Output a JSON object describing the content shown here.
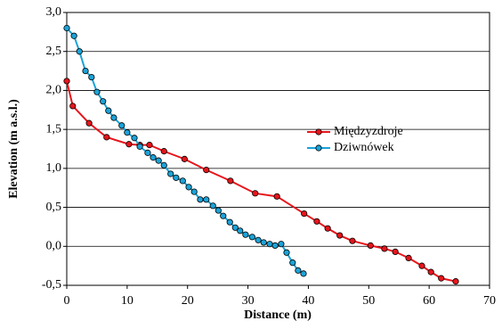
{
  "chart_data": {
    "type": "line",
    "x_label": "Distance (m)",
    "y_label": "Elevation (m a.s.l.)",
    "xlim": [
      0,
      70
    ],
    "xticks": [
      0,
      10,
      20,
      30,
      40,
      50,
      60,
      70
    ],
    "ylim": [
      -0.5,
      3.0
    ],
    "yticks": [
      {
        "value": -0.5,
        "label": "-0,5"
      },
      {
        "value": 0,
        "label": "0,0"
      },
      {
        "value": 0.5,
        "label": "0,5"
      },
      {
        "value": 1.0,
        "label": "1,0"
      },
      {
        "value": 1.5,
        "label": "1,5"
      },
      {
        "value": 2.0,
        "label": "2,0"
      },
      {
        "value": 2.5,
        "label": "2,5"
      },
      {
        "value": 3.0,
        "label": "3,0"
      }
    ],
    "grid": true,
    "legend": "right",
    "series": [
      {
        "name": "Międzyzdroje",
        "color": "#e8141b",
        "x": [
          0,
          1.0,
          3.7,
          6.6,
          10.3,
          12.1,
          13.7,
          16.1,
          19.5,
          23.1,
          27.1,
          31.2,
          34.8,
          39.3,
          41.4,
          43.2,
          45.2,
          47.3,
          50.3,
          52.6,
          54.4,
          56.6,
          58.8,
          60.3,
          62.0,
          64.4
        ],
        "values": [
          2.12,
          1.8,
          1.58,
          1.4,
          1.31,
          1.3,
          1.3,
          1.22,
          1.12,
          0.98,
          0.84,
          0.68,
          0.64,
          0.42,
          0.32,
          0.23,
          0.14,
          0.07,
          0.01,
          -0.03,
          -0.07,
          -0.15,
          -0.25,
          -0.33,
          -0.41,
          -0.45
        ]
      },
      {
        "name": "Dziwnówek",
        "color": "#1ba3d8",
        "x": [
          0,
          1.2,
          2.1,
          3.1,
          4.1,
          5.0,
          6.0,
          6.9,
          7.8,
          9.1,
          10.0,
          11.2,
          12.1,
          13.4,
          14.3,
          15.2,
          16.1,
          17.2,
          18.1,
          19.2,
          20.2,
          21.1,
          22.1,
          23.1,
          24.2,
          25.1,
          25.9,
          27.0,
          27.9,
          28.7,
          29.6,
          30.7,
          31.7,
          32.6,
          33.6,
          34.5,
          35.5,
          36.4,
          37.4,
          38.3,
          39.2
        ],
        "values": [
          2.8,
          2.7,
          2.5,
          2.25,
          2.17,
          1.98,
          1.86,
          1.74,
          1.65,
          1.55,
          1.46,
          1.39,
          1.28,
          1.2,
          1.14,
          1.1,
          1.04,
          0.93,
          0.88,
          0.84,
          0.76,
          0.7,
          0.6,
          0.6,
          0.52,
          0.46,
          0.39,
          0.31,
          0.24,
          0.2,
          0.15,
          0.12,
          0.08,
          0.05,
          0.03,
          0.01,
          0.03,
          -0.08,
          -0.21,
          -0.31,
          -0.35
        ]
      }
    ]
  }
}
